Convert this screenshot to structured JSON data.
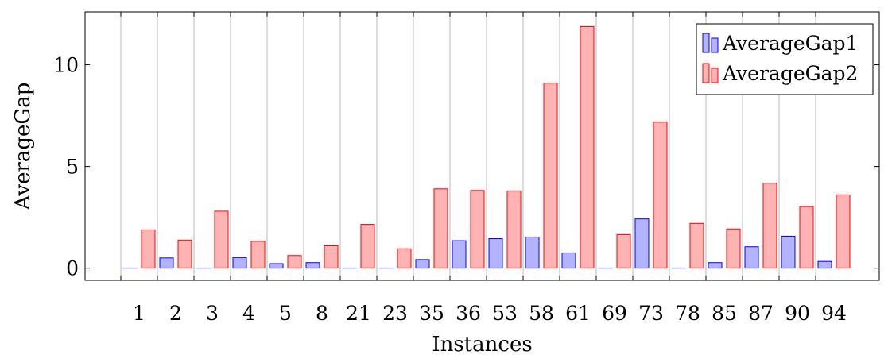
{
  "chart_data": {
    "type": "bar",
    "xlabel": "Instances",
    "ylabel": "AverageGap",
    "ylim": [
      -0.6,
      12.6
    ],
    "yticks": [
      0,
      5,
      10
    ],
    "grid": "vertical",
    "legend_position": "top-right",
    "categories": [
      "1",
      "2",
      "3",
      "4",
      "5",
      "8",
      "21",
      "23",
      "35",
      "36",
      "53",
      "58",
      "61",
      "69",
      "73",
      "78",
      "85",
      "87",
      "90",
      "94"
    ],
    "series": [
      {
        "name": "AverageGap1",
        "fill": "#b3b3ff",
        "stroke": "#0000ff",
        "values": [
          0.0,
          0.5,
          0.0,
          0.52,
          0.22,
          0.27,
          0.0,
          0.0,
          0.42,
          1.35,
          1.45,
          1.53,
          0.75,
          0.0,
          2.42,
          0.0,
          0.27,
          1.05,
          1.57,
          0.33
        ]
      },
      {
        "name": "AverageGap2",
        "fill": "#ffb3b3",
        "stroke": "#ff0000",
        "values": [
          1.88,
          1.38,
          2.8,
          1.32,
          0.62,
          1.1,
          2.15,
          0.95,
          3.9,
          3.82,
          3.8,
          9.1,
          11.88,
          1.65,
          7.18,
          2.2,
          1.93,
          4.18,
          3.03,
          3.6
        ]
      }
    ]
  }
}
